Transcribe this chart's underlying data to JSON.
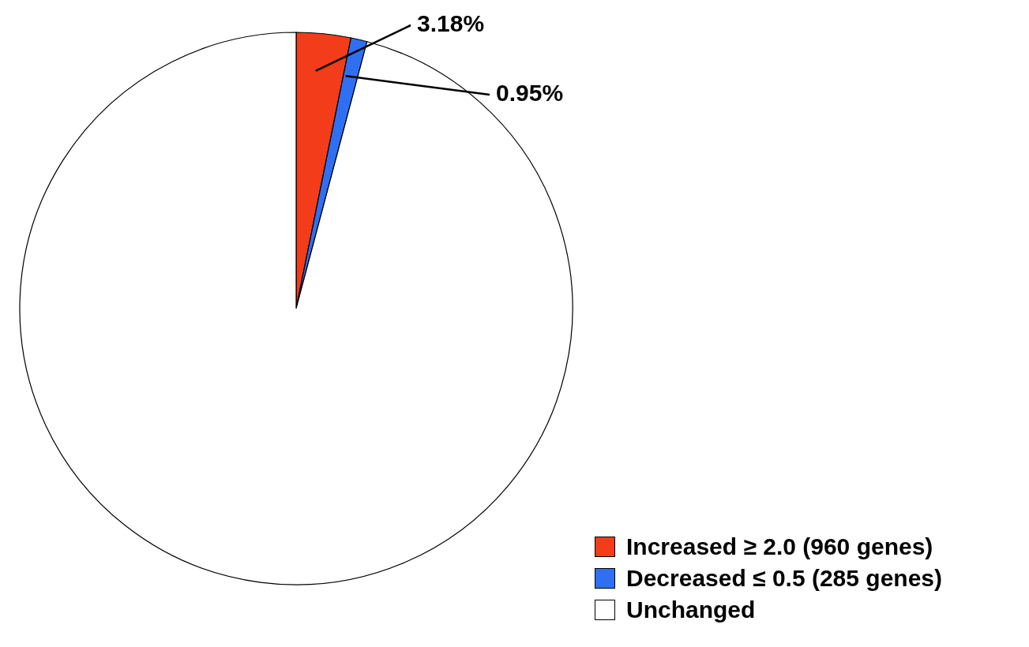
{
  "chart_data": {
    "type": "pie",
    "categories": [
      "Increased ≥ 2.0 (960 genes)",
      "Decreased ≤ 0.5 (285 genes)",
      "Unchanged"
    ],
    "values": [
      3.18,
      0.95,
      95.87
    ],
    "colors": [
      "#f23c1a",
      "#2f6ff2",
      "#ffffff"
    ],
    "value_labels": [
      "3.18%",
      "0.95%",
      null
    ],
    "legend": "bottom right"
  }
}
